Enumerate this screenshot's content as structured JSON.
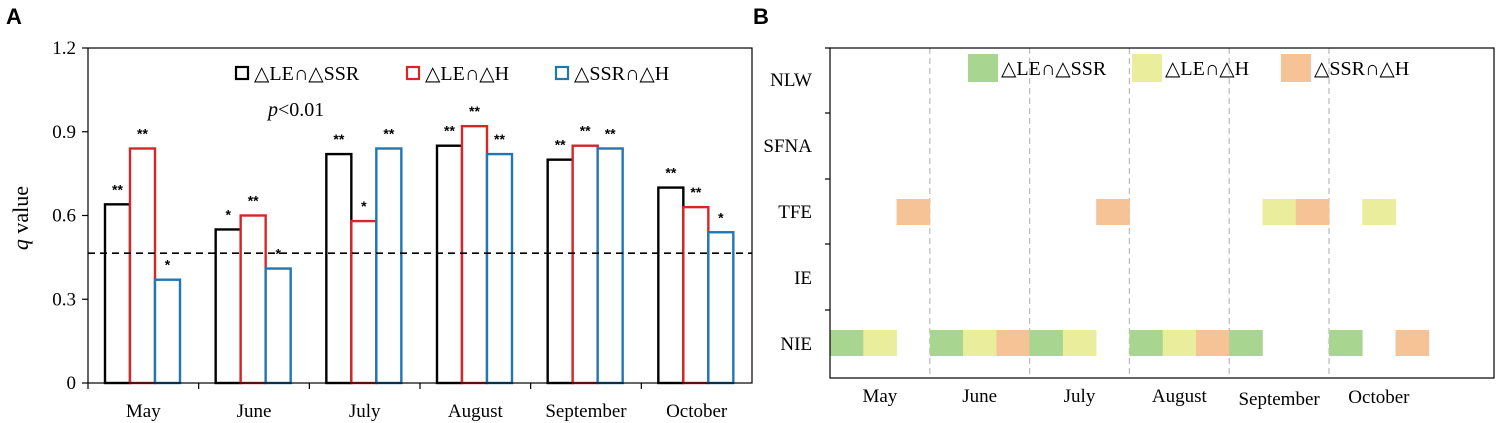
{
  "panels": {
    "a": "A",
    "b": "B"
  },
  "colors": {
    "series": [
      "#000000",
      "#d62728",
      "#1f77b4"
    ],
    "patterns": [
      "#a8d58f",
      "#eaed9c",
      "#f5c396"
    ],
    "threshold": "#000000",
    "frame": "#000000",
    "gridline": "#bbbbbb"
  },
  "chart_data": [
    {
      "type": "bar",
      "panel": "A",
      "ylabel_italic": "q",
      "ylabel_rest": " value",
      "categories": [
        "May",
        "June",
        "July",
        "August",
        "September",
        "October"
      ],
      "ylim": [
        0,
        1.2
      ],
      "yticks": [
        0,
        0.3,
        0.6,
        0.9,
        1.2
      ],
      "ytick_labels": [
        "0",
        "0.3",
        "0.6",
        "0.9",
        "1.2"
      ],
      "threshold": 0.465,
      "annotation_italic": "p",
      "annotation_rest": "<0.01",
      "series": [
        {
          "name": "△LE∩△SSR",
          "values": [
            0.64,
            0.55,
            0.82,
            0.85,
            0.8,
            0.7
          ],
          "significance": [
            "**",
            "*",
            "**",
            "**",
            "**",
            "**"
          ]
        },
        {
          "name": "△LE∩△H",
          "values": [
            0.84,
            0.6,
            0.58,
            0.92,
            0.85,
            0.63
          ],
          "significance": [
            "**",
            "**",
            "*",
            "**",
            "**",
            "**"
          ]
        },
        {
          "name": "△SSR∩△H",
          "values": [
            0.37,
            0.41,
            0.84,
            0.82,
            0.84,
            0.54
          ],
          "significance": [
            "*",
            "*",
            "**",
            "**",
            "**",
            "*"
          ]
        }
      ]
    },
    {
      "type": "heatmap",
      "panel": "B",
      "rows": [
        "NLW",
        "SFNA",
        "TFE",
        "IE",
        "NIE"
      ],
      "months": [
        "May",
        "June",
        "July",
        "August",
        "September",
        "October"
      ],
      "pattern_names": [
        "△LE∩△SSR",
        "△LE∩△H",
        "△SSR∩△H"
      ],
      "cells": [
        {
          "row": "TFE",
          "month": "May",
          "slot": 2,
          "pattern": 2
        },
        {
          "row": "TFE",
          "month": "July",
          "slot": 2,
          "pattern": 2
        },
        {
          "row": "TFE",
          "month": "September",
          "slot": 1,
          "pattern": 1
        },
        {
          "row": "TFE",
          "month": "September",
          "slot": 2,
          "pattern": 2
        },
        {
          "row": "TFE",
          "month": "October",
          "slot": 1,
          "pattern": 1
        },
        {
          "row": "NIE",
          "month": "May",
          "slot": 0,
          "pattern": 0
        },
        {
          "row": "NIE",
          "month": "May",
          "slot": 1,
          "pattern": 1
        },
        {
          "row": "NIE",
          "month": "June",
          "slot": 0,
          "pattern": 0
        },
        {
          "row": "NIE",
          "month": "June",
          "slot": 1,
          "pattern": 1
        },
        {
          "row": "NIE",
          "month": "June",
          "slot": 2,
          "pattern": 2
        },
        {
          "row": "NIE",
          "month": "July",
          "slot": 0,
          "pattern": 0
        },
        {
          "row": "NIE",
          "month": "July",
          "slot": 1,
          "pattern": 1
        },
        {
          "row": "NIE",
          "month": "August",
          "slot": 0,
          "pattern": 0
        },
        {
          "row": "NIE",
          "month": "August",
          "slot": 1,
          "pattern": 1
        },
        {
          "row": "NIE",
          "month": "August",
          "slot": 2,
          "pattern": 2
        },
        {
          "row": "NIE",
          "month": "September",
          "slot": 0,
          "pattern": 0
        },
        {
          "row": "NIE",
          "month": "October",
          "slot": 0,
          "pattern": 0
        },
        {
          "row": "NIE",
          "month": "October",
          "slot": 2,
          "pattern": 2
        }
      ]
    }
  ]
}
